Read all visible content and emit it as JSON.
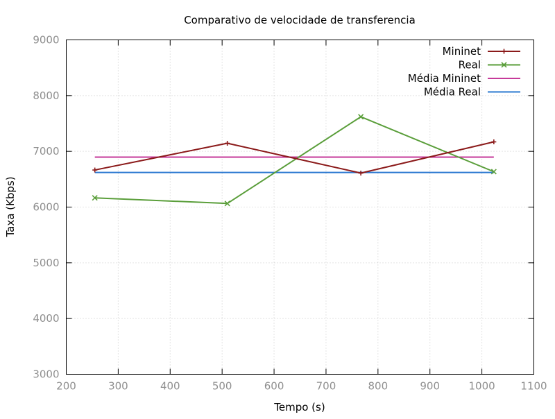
{
  "chart_data": {
    "type": "line",
    "title": "Comparativo de velocidade de transferencia",
    "xlabel": "Tempo (s)",
    "ylabel": "Taxa (Kbps)",
    "xlim": [
      200,
      1100
    ],
    "ylim": [
      3000,
      9000
    ],
    "xticks": [
      200,
      300,
      400,
      500,
      600,
      700,
      800,
      900,
      1000,
      1100
    ],
    "yticks": [
      3000,
      4000,
      5000,
      6000,
      7000,
      8000,
      9000
    ],
    "grid": true,
    "legend_position": "top-right",
    "series": [
      {
        "name": "Mininet",
        "color": "#8b1a1a",
        "marker": "plus",
        "x": [
          255,
          510,
          767,
          1023
        ],
        "y": [
          6665,
          7145,
          6610,
          7170
        ]
      },
      {
        "name": "Real",
        "color": "#5a9e3a",
        "marker": "cross",
        "x": [
          255,
          510,
          767,
          1023
        ],
        "y": [
          6165,
          6065,
          7620,
          6635
        ]
      },
      {
        "name": "Média Mininet",
        "color": "#c63a9a",
        "marker": "none",
        "x": [
          255,
          1023
        ],
        "y": [
          6897,
          6897
        ]
      },
      {
        "name": "Média Real",
        "color": "#2a78d0",
        "marker": "none",
        "x": [
          255,
          1023
        ],
        "y": [
          6621,
          6621
        ]
      }
    ]
  }
}
